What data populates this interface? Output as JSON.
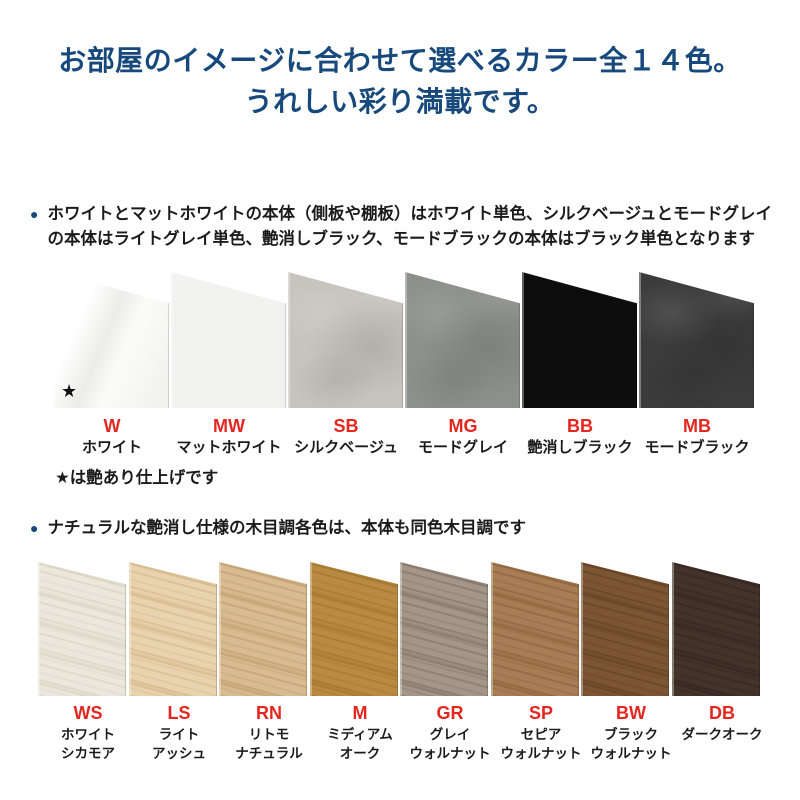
{
  "colors": {
    "navy": "#17497c",
    "red": "#e5261f",
    "ink": "#1b1b1b"
  },
  "icons": {
    "bullet_glyph": "●",
    "star_glyph": "★"
  },
  "title": {
    "line1": "お部屋のイメージに合わせて選べるカラー全１４色。",
    "line2": "うれしい彩り満載です。"
  },
  "section1": {
    "body": "ホワイトとマットホワイトの本体（側板や棚板）はホワイト単色、シルクベージュとモードグレイの本体はライトグレイ単色、艶消しブラック、モードブラックの本体はブラック単色となります",
    "note": "★は艶あり仕上げです"
  },
  "section2": {
    "body": "ナチュラルな艶消し仕様の木目調各色は、本体も同色木目調です"
  },
  "swatch_rows": [
    {
      "id": "solid-colors",
      "swatches": [
        {
          "code": "W",
          "name_lines": [
            "ホワイト"
          ],
          "finish": "gloss-white",
          "base": "#f6f6f5",
          "starred": true
        },
        {
          "code": "MW",
          "name_lines": [
            "マットホワイト"
          ],
          "finish": "flat",
          "base": "#f2f2f0"
        },
        {
          "code": "SB",
          "name_lines": [
            "シルクベージュ"
          ],
          "finish": "mottle",
          "base": "#c7c3bd"
        },
        {
          "code": "MG",
          "name_lines": [
            "モードグレイ"
          ],
          "finish": "mottle",
          "base": "#8d8f8a"
        },
        {
          "code": "BB",
          "name_lines": [
            "艶消しブラック"
          ],
          "finish": "flat",
          "base": "#0d0d0d"
        },
        {
          "code": "MB",
          "name_lines": [
            "モードブラック"
          ],
          "finish": "mottle",
          "base": "#3b3b3b"
        }
      ]
    },
    {
      "id": "wood-colors",
      "swatches": [
        {
          "code": "WS",
          "name_lines": [
            "ホワイト",
            "シカモア"
          ],
          "finish": "wood",
          "base": "#ebe7dc",
          "grain": "#d9d2c0"
        },
        {
          "code": "LS",
          "name_lines": [
            "ライト",
            "アッシュ"
          ],
          "finish": "wood",
          "base": "#e9d2ae",
          "grain": "#d2b788"
        },
        {
          "code": "RN",
          "name_lines": [
            "リトモ",
            "ナチュラル"
          ],
          "finish": "wood",
          "base": "#d8bb90",
          "grain": "#c09e6e"
        },
        {
          "code": "M",
          "name_lines": [
            "ミディアム",
            "オーク"
          ],
          "finish": "wood",
          "base": "#b98a41",
          "grain": "#a2742e"
        },
        {
          "code": "GR",
          "name_lines": [
            "グレイ",
            "ウォルナット"
          ],
          "finish": "wood",
          "base": "#a39689",
          "grain": "#817365"
        },
        {
          "code": "SP",
          "name_lines": [
            "セピア",
            "ウォルナット"
          ],
          "finish": "wood",
          "base": "#a87d53",
          "grain": "#8c623d"
        },
        {
          "code": "BW",
          "name_lines": [
            "ブラック",
            "ウォルナット"
          ],
          "finish": "wood",
          "base": "#7c5535",
          "grain": "#634124"
        },
        {
          "code": "DB",
          "name_lines": [
            "ダークオーク"
          ],
          "finish": "wood",
          "base": "#43332a",
          "grain": "#33261f"
        }
      ]
    }
  ]
}
